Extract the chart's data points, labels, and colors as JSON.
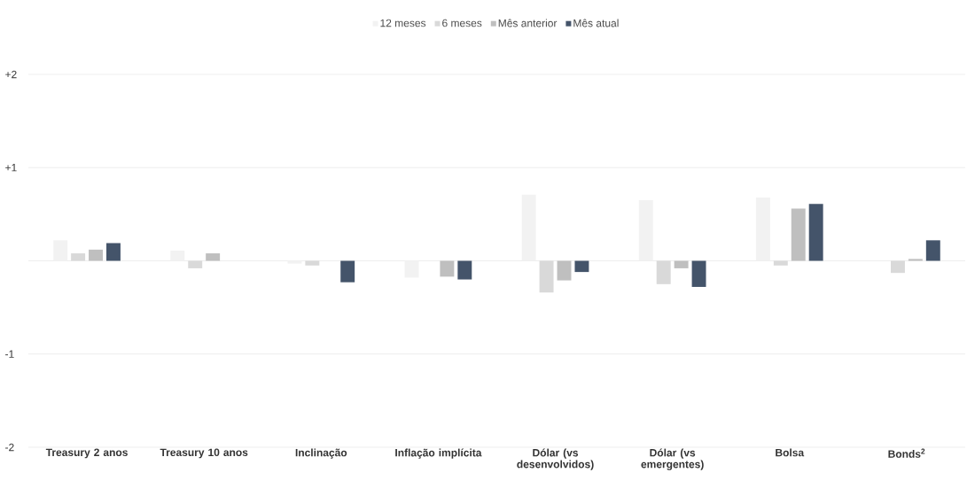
{
  "chart_data": {
    "type": "bar",
    "categories": [
      "Treasury 2 anos",
      "Treasury 10 anos",
      "Inclinação",
      "Inflação implícita",
      "Dólar (vs desenvolvidos)",
      "Dólar (vs emergentes)",
      "Bolsa",
      "Bonds$^{2}$"
    ],
    "series": [
      {
        "name": "12 meses",
        "color": "#f2f2f2",
        "values": [
          0.22,
          0.11,
          -0.03,
          -0.18,
          0.71,
          0.65,
          0.68,
          null
        ]
      },
      {
        "name": "6 meses",
        "color": "#d9d9d9",
        "values": [
          0.08,
          -0.08,
          -0.05,
          null,
          -0.34,
          -0.25,
          -0.05,
          -0.13
        ]
      },
      {
        "name": "Mês anterior",
        "color": "#bfbfbf",
        "values": [
          0.12,
          0.08,
          null,
          -0.17,
          -0.21,
          -0.08,
          0.56,
          0.02
        ]
      },
      {
        "name": "Mês atual",
        "color": "#44546a",
        "values": [
          0.19,
          null,
          -0.23,
          -0.2,
          -0.12,
          -0.28,
          0.61,
          0.22
        ]
      }
    ],
    "ylim": [
      -2,
      2
    ],
    "yticks": [
      {
        "value": -2,
        "label": "-2"
      },
      {
        "value": -1,
        "label": "-1"
      },
      {
        "value": 0,
        "label": null
      },
      {
        "value": 1,
        "label": "+1"
      },
      {
        "value": 2,
        "label": "+2"
      }
    ],
    "grid": "y",
    "legend": "top"
  }
}
